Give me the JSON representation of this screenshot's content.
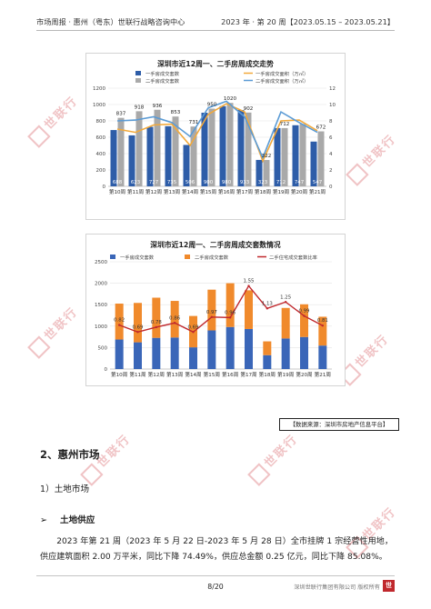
{
  "header": {
    "left": "市场周报 · 惠州（粤东）世联行战略咨询中心",
    "right": "2023 年 · 第 20 周【2023.05.15 – 2023.05.21】"
  },
  "watermark": {
    "text": "世联行"
  },
  "chart_data": [
    {
      "type": "bar",
      "title": "深圳市近12周一、二手房周成交走势",
      "categories": [
        "第10周",
        "第11周",
        "第12周",
        "第13周",
        "第14周",
        "第15周",
        "第16周",
        "第17周",
        "第18周",
        "第19周",
        "第20周",
        "第21周"
      ],
      "series": [
        {
          "name": "一手房成交套数",
          "kind": "bar",
          "axis": "left",
          "color": "#2e5da8",
          "values": [
            688,
            623,
            727,
            735,
            506,
            900,
            980,
            933,
            323,
            712,
            747,
            547
          ]
        },
        {
          "name": "二手房成交套数",
          "kind": "bar",
          "axis": "left",
          "color": "#a9a9a9",
          "values": [
            837,
            918,
            936,
            853,
            731,
            950,
            1020,
            902,
            322,
            712,
            762,
            672
          ]
        },
        {
          "name": "一手房成交面积（万㎡）",
          "kind": "line",
          "axis": "right",
          "color": "#f2a93b",
          "values": [
            7.0,
            6.6,
            7.5,
            7.6,
            5.0,
            8.8,
            10.1,
            9.1,
            3.1,
            8.0,
            8.1,
            6.8
          ]
        },
        {
          "name": "二手房成交面积（万㎡）",
          "kind": "line",
          "axis": "right",
          "color": "#5b9bd5",
          "values": [
            8.0,
            8.1,
            8.5,
            7.8,
            6.1,
            9.6,
            10.4,
            8.5,
            3.5,
            9.1,
            7.8,
            6.6
          ]
        }
      ],
      "labels_top": [
        "837",
        "918",
        "936",
        "853",
        "731",
        "950",
        "1020",
        "902",
        "322",
        "712",
        "",
        "672"
      ],
      "labels_bottom": [
        "688",
        "623",
        "727",
        "735",
        "506",
        "900",
        "980",
        "933",
        "323",
        "712",
        "747",
        "547"
      ],
      "ylim_left": [
        0,
        1200
      ],
      "yticks_left": [
        "0",
        "200",
        "400",
        "600",
        "800",
        "1000",
        "1200"
      ],
      "ylim_right": [
        0,
        12
      ],
      "yticks_right": [
        "0",
        "2",
        "4",
        "6",
        "8",
        "10",
        "12"
      ]
    },
    {
      "type": "bar",
      "title": "深圳市近12周一、二手房周成交套数情况",
      "stacked": true,
      "categories": [
        "第10周",
        "第11周",
        "第12周",
        "第13周",
        "第14周",
        "第15周",
        "第16周",
        "第17周",
        "第18周",
        "第19周",
        "第20周",
        "第21周"
      ],
      "series": [
        {
          "name": "一手房成交套数",
          "kind": "bar",
          "axis": "left",
          "color": "#3a66b8",
          "values": [
            688,
            623,
            727,
            735,
            506,
            900,
            980,
            933,
            323,
            712,
            747,
            547
          ]
        },
        {
          "name": "二手房成交套数",
          "kind": "bar",
          "axis": "left",
          "color": "#f08a2c",
          "values": [
            837,
            918,
            936,
            853,
            731,
            950,
            1020,
            902,
            322,
            712,
            762,
            672
          ]
        },
        {
          "name": "二手住宅成交套数比率",
          "kind": "line",
          "axis": "right",
          "color": "#c0282d",
          "values": [
            0.82,
            0.69,
            0.78,
            0.86,
            0.69,
            0.97,
            0.96,
            1.55,
            1.13,
            1.25,
            0.99,
            0.81
          ]
        }
      ],
      "point_labels": [
        "0.82",
        "0.69",
        "0.78",
        "0.86",
        "0.69",
        "0.97",
        "0.96",
        "1.55",
        "1.13",
        "1.25",
        "0.99",
        "0.81"
      ],
      "ylim_left": [
        0,
        2500
      ],
      "yticks_left": [
        "0",
        "500",
        "1000",
        "1500",
        "2000",
        "2500"
      ],
      "ylim_right": [
        0,
        2
      ]
    }
  ],
  "source": "【数据来源：深圳市房地产信息平台】",
  "section": {
    "title": "2、惠州市场",
    "sub": "1）土地市场",
    "bullet_symbol": "➢",
    "bullet": "土地供应",
    "paragraph": "2023 年第 21 周（2023 年 5 月 22 日-2023 年 5 月 28 日）全市挂牌 1 宗经营性用地，供应建筑面积 2.00 万平米，同比下降 74.49%，供应总金额 0.25 亿元，同比下降 85.08%。"
  },
  "footer": {
    "page": "8/20",
    "copyright": "深圳世联行集团有限公司 版权所有",
    "logo_glyph": "世"
  }
}
